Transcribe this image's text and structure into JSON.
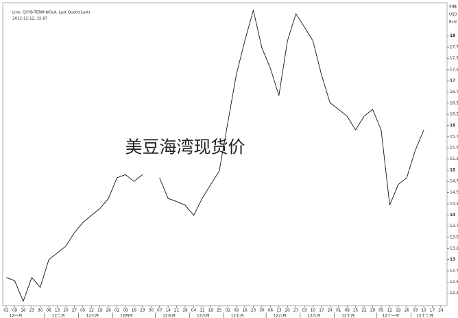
{
  "chart_data": {
    "type": "line",
    "title": "美豆海湾现货价",
    "subtitle": "Line, QSYB-TERM-NOLA, Last Quote(Last)",
    "annotation": "2012-12-12, 15.87",
    "axis_header": [
      "价格",
      "USD",
      "Bshl"
    ],
    "categories": [
      "02",
      "09",
      "16",
      "23",
      "30",
      "06",
      "13",
      "20",
      "27",
      "05",
      "12",
      "19",
      "26",
      "02",
      "09",
      "16",
      "23",
      "30",
      "07",
      "14",
      "21",
      "28",
      "04",
      "11",
      "18",
      "25",
      "02",
      "09",
      "16",
      "23",
      "30",
      "06",
      "13",
      "20",
      "27",
      "03",
      "10",
      "17",
      "24",
      "01",
      "08",
      "15",
      "22",
      "29",
      "05",
      "12",
      "19",
      "26",
      "03",
      "10",
      "17",
      "24"
    ],
    "months": [
      "12一月",
      "12二月",
      "12三月",
      "12四月",
      "12五月",
      "12六月",
      "12七月",
      "12八月",
      "12九月",
      "12十月",
      "12十一月",
      "12十二月"
    ],
    "series": [
      {
        "name": "QSYB-TERM-NOLA",
        "color": "#111111",
        "values": [
          12.6,
          12.53,
          12.07,
          12.6,
          12.38,
          13.0,
          13.15,
          13.3,
          13.6,
          13.83,
          13.99,
          14.14,
          14.37,
          14.83,
          14.9,
          14.75,
          14.9,
          null,
          14.83,
          14.37,
          14.3,
          14.22,
          13.99,
          14.37,
          14.68,
          14.98,
          16.06,
          17.13,
          17.89,
          18.58,
          17.74,
          17.28,
          16.67,
          17.89,
          18.5,
          18.2,
          17.89,
          17.13,
          16.51,
          16.36,
          16.21,
          15.9,
          16.21,
          16.36,
          15.9,
          14.22,
          14.68,
          14.83,
          15.44,
          15.9,
          null,
          null
        ]
      }
    ],
    "ylim": [
      11.97,
      18.73
    ],
    "yticks": [
      18,
      17.75,
      17.5,
      17.25,
      17,
      16.75,
      16.5,
      16.25,
      16,
      15.75,
      15.5,
      15.25,
      15,
      14.75,
      14.5,
      14.25,
      14,
      13.75,
      13.5,
      13.25,
      13,
      12.75,
      12.5,
      12.25
    ]
  }
}
